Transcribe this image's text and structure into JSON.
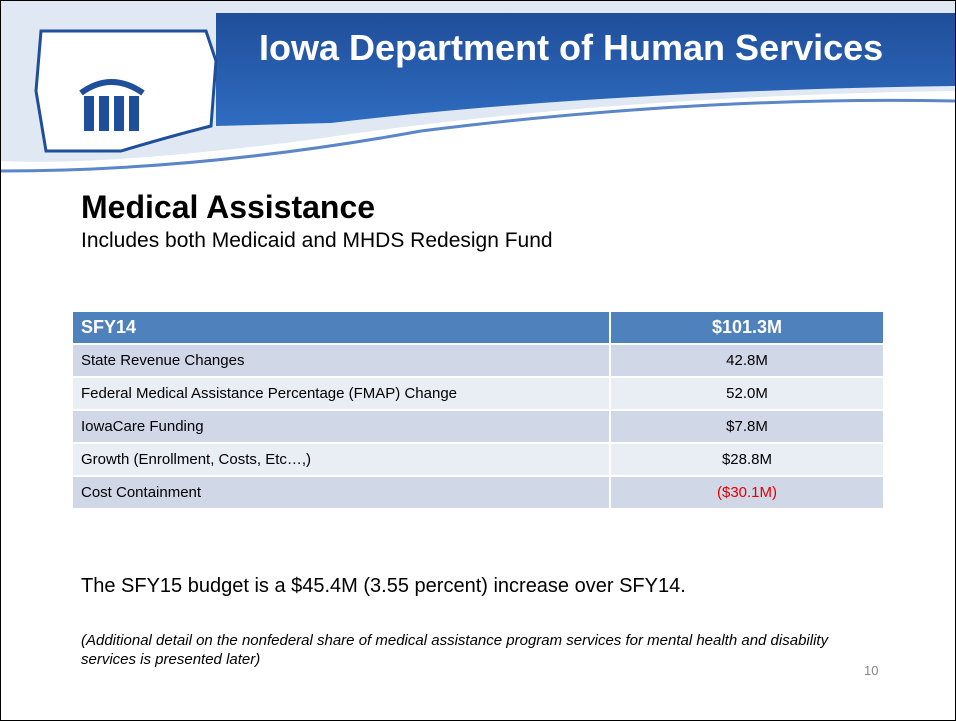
{
  "header": {
    "title": "Iowa Department of Human Services"
  },
  "title": "Medical Assistance",
  "subtitle": "Includes both Medicaid and MHDS Redesign Fund",
  "table": {
    "header": [
      "SFY14",
      "$101.3M"
    ],
    "rows": [
      [
        "State Revenue Changes",
        "42.8M"
      ],
      [
        "Federal Medical Assistance Percentage (FMAP) Change",
        "52.0M"
      ],
      [
        "IowaCare Funding",
        "$7.8M"
      ],
      [
        "Growth (Enrollment, Costs, Etc…,)",
        "$28.8M"
      ],
      [
        "Cost Containment",
        "($30.1M)"
      ]
    ]
  },
  "summary": "The SFY15 budget is a $45.4M (3.55 percent) increase over SFY14.",
  "note": "(Additional detail on the nonfederal share of medical assistance program services for mental health and disability services is presented later)",
  "page_number": "10"
}
